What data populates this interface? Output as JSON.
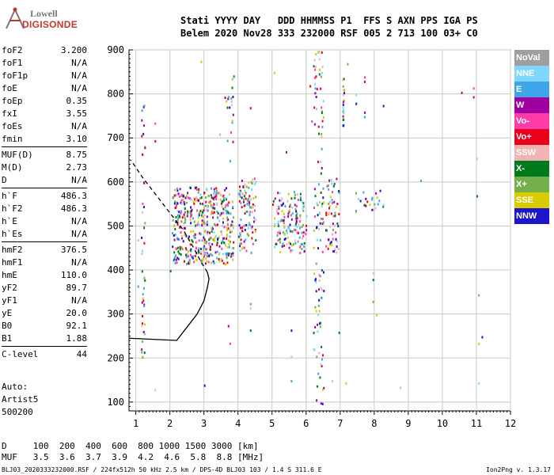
{
  "logo": {
    "line1": "Lowell",
    "line2": "DIGISONDE"
  },
  "header": {
    "line1": "Stati YYYY DAY   DDD HHMMSS P1  FFS S AXN PPS IGA PS",
    "line2": "Belem 2020 Nov28 333 232000 RSF 005 2 713 100 03+ C0"
  },
  "params": [
    {
      "label": "foF2",
      "value": "3.200"
    },
    {
      "label": "foF1",
      "value": "N/A"
    },
    {
      "label": "foF1p",
      "value": "N/A"
    },
    {
      "label": "foE",
      "value": "N/A"
    },
    {
      "label": "foEp",
      "value": "0.35"
    },
    {
      "label": "fxI",
      "value": "3.55"
    },
    {
      "label": "foEs",
      "value": "N/A"
    },
    {
      "label": "fmin",
      "value": "3.10"
    },
    {
      "label": "MUF(D)",
      "value": "8.75",
      "sep": true
    },
    {
      "label": "M(D)",
      "value": "2.73"
    },
    {
      "label": "D",
      "value": "N/A"
    },
    {
      "label": "h`F",
      "value": "486.3",
      "sep": true
    },
    {
      "label": "h`F2",
      "value": "486.3"
    },
    {
      "label": "h`E",
      "value": "N/A"
    },
    {
      "label": "h`Es",
      "value": "N/A"
    },
    {
      "label": "hmF2",
      "value": "376.5",
      "sep": true
    },
    {
      "label": "hmF1",
      "value": "N/A"
    },
    {
      "label": "hmE",
      "value": "110.0"
    },
    {
      "label": "yF2",
      "value": "89.7"
    },
    {
      "label": "yF1",
      "value": "N/A"
    },
    {
      "label": "yE",
      "value": "20.0"
    },
    {
      "label": "B0",
      "value": "92.1"
    },
    {
      "label": "B1",
      "value": "1.88"
    },
    {
      "label": "C-level",
      "value": "44",
      "sep": true
    }
  ],
  "auto": {
    "line1": "Auto:",
    "line2": "Artist5",
    "line3": "500200"
  },
  "dm_table": {
    "d_line": "D     100  200  400  600  800 1000 1500 3000 [km]",
    "muf_line": "MUF   3.5  3.6  3.7  3.9  4.2  4.6  5.8  8.8 [MHz]"
  },
  "footer": "BLJ03_2020333232000.RSF / 224fx512h 50 kHz 2.5 km / DPS-4D BLJ03 103 / 1.4 S 311.6 E",
  "version": "Ion2Png v. 1.3.17",
  "legend": [
    {
      "label": "NoVal",
      "color": "#9e9e9e"
    },
    {
      "label": "NNE",
      "color": "#7fd6ff"
    },
    {
      "label": "E",
      "color": "#3fa4e8"
    },
    {
      "label": "W",
      "color": "#a000a0"
    },
    {
      "label": "Vo-",
      "color": "#ff3ca8"
    },
    {
      "label": "Vo+",
      "color": "#e8001c"
    },
    {
      "label": "SSW",
      "color": "#f2b3b3"
    },
    {
      "label": "X-",
      "color": "#007a1c"
    },
    {
      "label": "X+",
      "color": "#73b04c"
    },
    {
      "label": "SSE",
      "color": "#d8cc00"
    },
    {
      "label": "NNW",
      "color": "#1b16c8"
    }
  ],
  "chart_data": {
    "type": "scatter",
    "xlim": [
      0.8,
      12
    ],
    "ylim": [
      80,
      900
    ],
    "x_ticks": [
      "1",
      "2",
      "3",
      "4",
      "5",
      "6",
      "7",
      "8",
      "9",
      "10",
      "11",
      "12"
    ],
    "y_ticks": [
      "100",
      "200",
      "300",
      "400",
      "500",
      "600",
      "700",
      "800",
      "900"
    ],
    "grid": true,
    "profile": [
      [
        2.2,
        240
      ],
      [
        2.5,
        270
      ],
      [
        2.8,
        300
      ],
      [
        3.0,
        330
      ],
      [
        3.1,
        360
      ],
      [
        3.15,
        380
      ],
      [
        3.1,
        395
      ],
      [
        2.9,
        420
      ],
      [
        2.7,
        450
      ],
      [
        2.4,
        490
      ],
      [
        2.0,
        530
      ],
      [
        1.6,
        570
      ],
      [
        1.2,
        610
      ],
      [
        0.85,
        650
      ]
    ],
    "echo_clusters": [
      {
        "x": [
          2.05,
          3.85
        ],
        "y": [
          415,
          590
        ],
        "n": 480
      },
      {
        "x": [
          4.0,
          4.5
        ],
        "y": [
          440,
          610
        ],
        "n": 110
      },
      {
        "x": [
          5.0,
          6.0
        ],
        "y": [
          440,
          580
        ],
        "n": 150
      },
      {
        "x": [
          6.2,
          6.5
        ],
        "y": [
          80,
          900
        ],
        "n": 120
      },
      {
        "x": [
          6.55,
          6.95
        ],
        "y": [
          440,
          610
        ],
        "n": 60
      },
      {
        "x": [
          7.4,
          8.3
        ],
        "y": [
          530,
          585
        ],
        "n": 25
      },
      {
        "x": [
          1.15,
          1.25
        ],
        "y": [
          200,
          780
        ],
        "n": 45
      },
      {
        "x": [
          3.6,
          3.9
        ],
        "y": [
          690,
          850
        ],
        "n": 20
      },
      {
        "x": [
          7.05,
          7.1
        ],
        "y": [
          720,
          860
        ],
        "n": 20
      }
    ],
    "scattered_points": [
      [
        1.05,
        470
      ],
      [
        1.05,
        365
      ],
      [
        1.25,
        680
      ],
      [
        1.55,
        735
      ],
      [
        1.55,
        695
      ],
      [
        1.55,
        130
      ],
      [
        2.0,
        400
      ],
      [
        2.35,
        450
      ],
      [
        2.9,
        875
      ],
      [
        3.0,
        140
      ],
      [
        3.45,
        710
      ],
      [
        3.75,
        650
      ],
      [
        3.7,
        275
      ],
      [
        3.75,
        235
      ],
      [
        4.35,
        770
      ],
      [
        4.35,
        315
      ],
      [
        4.35,
        265
      ],
      [
        4.35,
        325
      ],
      [
        5.05,
        850
      ],
      [
        5.55,
        265
      ],
      [
        5.55,
        205
      ],
      [
        5.55,
        150
      ],
      [
        5.4,
        670
      ],
      [
        6.15,
        740
      ],
      [
        6.1,
        820
      ],
      [
        6.75,
        150
      ],
      [
        6.95,
        260
      ],
      [
        7.2,
        870
      ],
      [
        7.15,
        145
      ],
      [
        7.45,
        780
      ],
      [
        7.45,
        800
      ],
      [
        7.7,
        750
      ],
      [
        7.7,
        760
      ],
      [
        7.7,
        840
      ],
      [
        7.7,
        830
      ],
      [
        7.95,
        395
      ],
      [
        7.95,
        380
      ],
      [
        7.95,
        330
      ],
      [
        8.05,
        300
      ],
      [
        8.25,
        775
      ],
      [
        8.75,
        135
      ],
      [
        9.35,
        605
      ],
      [
        10.55,
        805
      ],
      [
        10.9,
        815
      ],
      [
        10.9,
        795
      ],
      [
        11.0,
        655
      ],
      [
        11.0,
        570
      ],
      [
        11.05,
        345
      ],
      [
        11.05,
        235
      ],
      [
        11.15,
        250
      ],
      [
        11.05,
        145
      ],
      [
        8.15,
        80
      ],
      [
        8.25,
        80
      ]
    ]
  }
}
